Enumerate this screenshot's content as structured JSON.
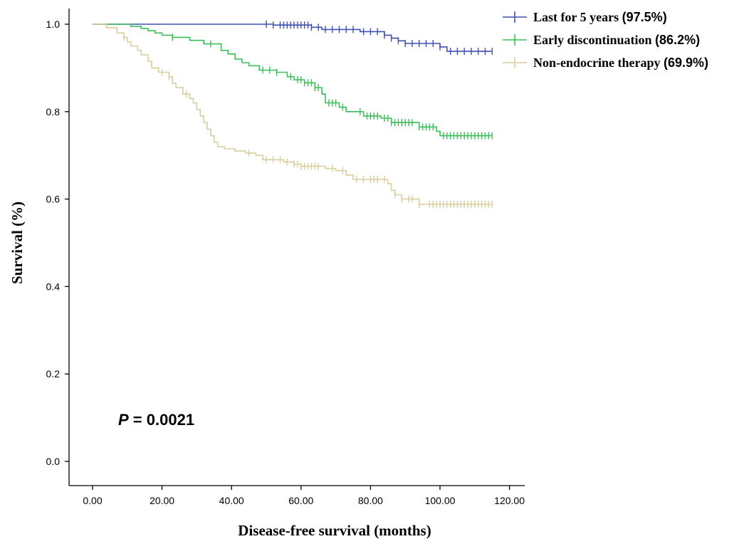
{
  "chart_data": {
    "type": "line",
    "subtype": "kaplan-meier",
    "title": "",
    "xlabel": "Disease-free survival (months)",
    "ylabel": "Survival (%)",
    "xlim": [
      0,
      120
    ],
    "ylim": [
      0,
      1.0
    ],
    "x_ticks": [
      "0.00",
      "20.00",
      "40.00",
      "60.00",
      "80.00",
      "100.00",
      "120.00"
    ],
    "y_ticks": [
      "0.0",
      "0.2",
      "0.4",
      "0.6",
      "0.8",
      "1.0"
    ],
    "grid": false,
    "legend_position": "top-right",
    "annotation": {
      "italic": "P",
      "rest": " = 0.0021"
    },
    "series": [
      {
        "name": "Last for 5 years",
        "pct": "(97.5%)",
        "color": "#3f51b5",
        "steps": [
          [
            0,
            1.0
          ],
          [
            52,
            0.998
          ],
          [
            63,
            0.993
          ],
          [
            66,
            0.988
          ],
          [
            77,
            0.983
          ],
          [
            84,
            0.975
          ],
          [
            86,
            0.968
          ],
          [
            88,
            0.962
          ],
          [
            90,
            0.956
          ],
          [
            100,
            0.948
          ],
          [
            102,
            0.938
          ],
          [
            115,
            0.938
          ]
        ],
        "censor": [
          50,
          52,
          54,
          55,
          56,
          57,
          58,
          59,
          60,
          61,
          62,
          63,
          65,
          67,
          69,
          71,
          73,
          75,
          78,
          80,
          82,
          84,
          86,
          88,
          90,
          92,
          94,
          96,
          98,
          100,
          103,
          105,
          107,
          109,
          111,
          113,
          115
        ]
      },
      {
        "name": "Early discontinuation",
        "pct": "(86.2%)",
        "color": "#3cbf5a",
        "steps": [
          [
            0,
            1.0
          ],
          [
            11,
            0.995
          ],
          [
            14,
            0.99
          ],
          [
            16,
            0.985
          ],
          [
            18,
            0.98
          ],
          [
            20,
            0.975
          ],
          [
            23,
            0.97
          ],
          [
            28,
            0.963
          ],
          [
            32,
            0.955
          ],
          [
            37,
            0.94
          ],
          [
            39,
            0.932
          ],
          [
            41,
            0.92
          ],
          [
            43,
            0.912
          ],
          [
            45,
            0.905
          ],
          [
            48,
            0.895
          ],
          [
            53,
            0.89
          ],
          [
            56,
            0.88
          ],
          [
            58,
            0.873
          ],
          [
            61,
            0.866
          ],
          [
            64,
            0.855
          ],
          [
            66,
            0.84
          ],
          [
            67,
            0.82
          ],
          [
            71,
            0.81
          ],
          [
            73,
            0.8
          ],
          [
            78,
            0.79
          ],
          [
            83,
            0.785
          ],
          [
            86,
            0.775
          ],
          [
            94,
            0.765
          ],
          [
            99,
            0.755
          ],
          [
            100,
            0.745
          ],
          [
            115,
            0.745
          ]
        ],
        "censor": [
          23,
          34,
          49,
          51,
          53,
          57,
          59,
          60,
          61,
          62,
          63,
          64,
          65,
          68,
          69,
          70,
          72,
          77,
          79,
          80,
          81,
          82,
          84,
          85,
          86,
          87,
          88,
          89,
          90,
          91,
          92,
          94,
          95,
          96,
          97,
          98,
          101,
          102,
          103,
          104,
          105,
          106,
          107,
          108,
          109,
          110,
          111,
          112,
          113,
          114,
          115
        ]
      },
      {
        "name": "Non-endocrine therapy",
        "pct": "(69.9%)",
        "color": "#d8ce9e",
        "steps": [
          [
            0,
            1.0
          ],
          [
            4,
            0.992
          ],
          [
            7,
            0.98
          ],
          [
            9,
            0.97
          ],
          [
            10,
            0.96
          ],
          [
            11,
            0.95
          ],
          [
            13,
            0.94
          ],
          [
            14,
            0.93
          ],
          [
            16,
            0.915
          ],
          [
            17,
            0.9
          ],
          [
            19,
            0.89
          ],
          [
            22,
            0.88
          ],
          [
            23,
            0.865
          ],
          [
            24,
            0.855
          ],
          [
            26,
            0.84
          ],
          [
            28,
            0.83
          ],
          [
            29,
            0.82
          ],
          [
            30,
            0.805
          ],
          [
            31,
            0.79
          ],
          [
            32,
            0.775
          ],
          [
            33,
            0.76
          ],
          [
            34,
            0.745
          ],
          [
            35,
            0.73
          ],
          [
            36,
            0.72
          ],
          [
            38,
            0.715
          ],
          [
            41,
            0.71
          ],
          [
            44,
            0.705
          ],
          [
            47,
            0.7
          ],
          [
            49,
            0.69
          ],
          [
            55,
            0.685
          ],
          [
            58,
            0.68
          ],
          [
            60,
            0.675
          ],
          [
            67,
            0.67
          ],
          [
            70,
            0.665
          ],
          [
            73,
            0.655
          ],
          [
            75,
            0.645
          ],
          [
            85,
            0.635
          ],
          [
            86,
            0.62
          ],
          [
            87,
            0.61
          ],
          [
            89,
            0.6
          ],
          [
            94,
            0.588
          ],
          [
            115,
            0.588
          ]
        ],
        "censor": [
          9,
          20,
          22,
          27,
          45,
          50,
          52,
          54,
          56,
          58,
          59,
          60,
          61,
          62,
          63,
          64,
          65,
          69,
          72,
          76,
          78,
          80,
          81,
          82,
          84,
          87,
          89,
          91,
          92,
          94,
          97,
          98,
          99,
          100,
          101,
          102,
          103,
          104,
          105,
          106,
          107,
          108,
          109,
          110,
          111,
          112,
          113,
          114,
          115
        ]
      }
    ]
  }
}
